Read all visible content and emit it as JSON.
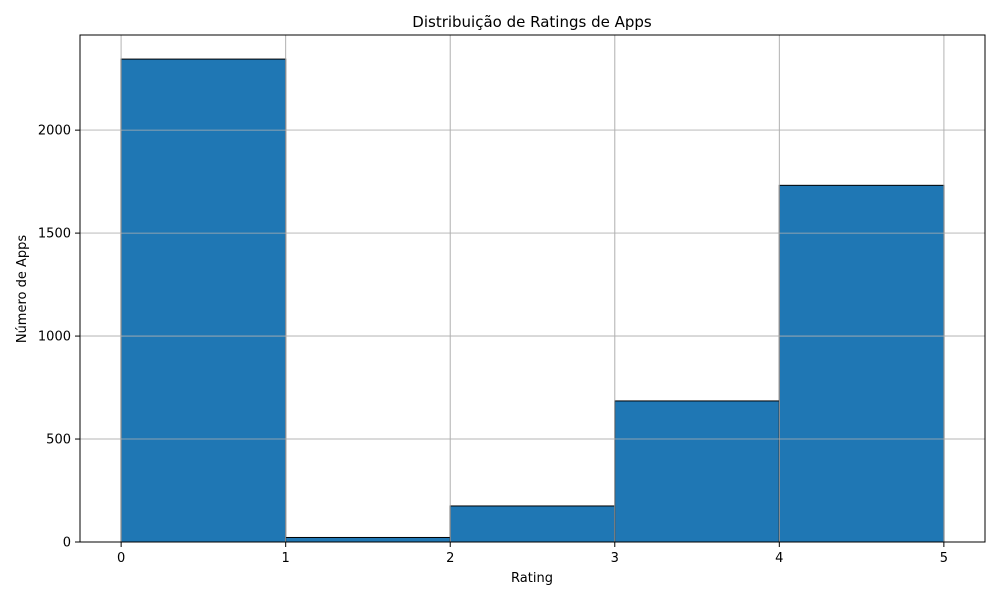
{
  "chart_data": {
    "type": "bar",
    "histogram": true,
    "title": "Distribuição de Ratings de Apps",
    "xlabel": "Rating",
    "ylabel": "Número de Apps",
    "bins": [
      [
        0,
        1
      ],
      [
        1,
        2
      ],
      [
        2,
        3
      ],
      [
        3,
        4
      ],
      [
        4,
        5
      ]
    ],
    "values": [
      2345,
      22,
      175,
      685,
      1732
    ],
    "xlim": [
      -0.25,
      5.25
    ],
    "ylim": [
      0,
      2462
    ],
    "xticks": [
      0,
      1,
      2,
      3,
      4,
      5
    ],
    "xtick_labels": [
      "0",
      "1",
      "2",
      "3",
      "4",
      "5"
    ],
    "yticks": [
      0,
      500,
      1000,
      1500,
      2000
    ],
    "ytick_labels": [
      "0",
      "500",
      "1000",
      "1500",
      "2000"
    ],
    "grid": true,
    "bar_color": "#1f77b4",
    "edge_color": "#000000",
    "grid_color": "#b0b0b0"
  }
}
